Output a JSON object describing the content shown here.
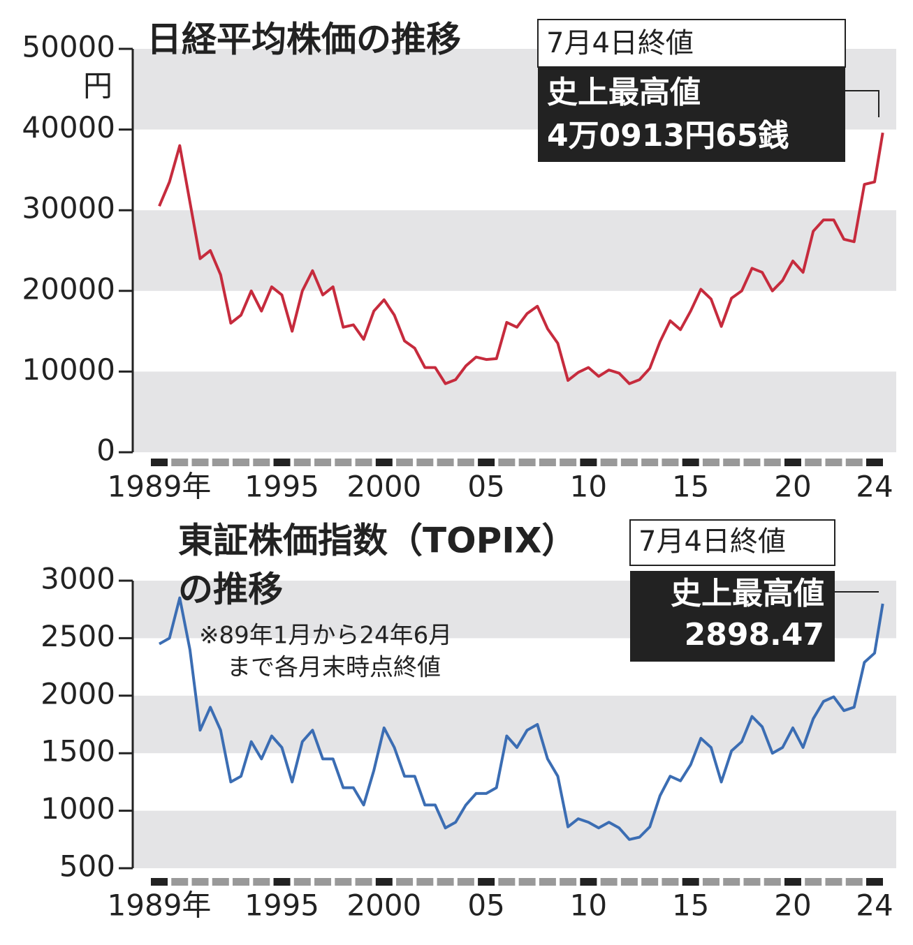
{
  "chart_data": [
    {
      "type": "line",
      "title": [
        "日経平均株価の推移"
      ],
      "unit": "円",
      "annotations": [
        "7月4日終値",
        "史上最高値",
        "4万0913円65銭"
      ],
      "xlim": [
        1989,
        2024.4
      ],
      "ylim": [
        0,
        50000
      ],
      "xticks": [
        {
          "value": 1989,
          "label": "1989年"
        },
        1995,
        2000,
        {
          "value": 2005,
          "label": "05"
        },
        {
          "value": 2010,
          "label": "10"
        },
        {
          "value": 2015,
          "label": "15"
        },
        {
          "value": 2020,
          "label": "20"
        },
        {
          "value": 2024,
          "label": "24"
        }
      ],
      "yticks": [
        0,
        10000,
        20000,
        30000,
        40000,
        50000
      ],
      "grid": "bands",
      "x": [
        1989,
        1989.5,
        1990,
        1990.5,
        1991,
        1991.5,
        1992,
        1992.5,
        1993,
        1993.5,
        1994,
        1994.5,
        1995,
        1995.5,
        1996,
        1996.5,
        1997,
        1997.5,
        1998,
        1998.5,
        1999,
        1999.5,
        2000,
        2000.5,
        2001,
        2001.5,
        2002,
        2002.5,
        2003,
        2003.5,
        2004,
        2004.5,
        2005,
        2005.5,
        2006,
        2006.5,
        2007,
        2007.5,
        2008,
        2008.5,
        2009,
        2009.5,
        2010,
        2010.5,
        2011,
        2011.5,
        2012,
        2012.5,
        2013,
        2013.5,
        2014,
        2014.5,
        2015,
        2015.5,
        2016,
        2016.5,
        2017,
        2017.5,
        2018,
        2018.5,
        2019,
        2019.5,
        2020,
        2020.5,
        2021,
        2021.5,
        2022,
        2022.5,
        2023,
        2023.5,
        2024,
        2024.4
      ],
      "series": [
        {
          "color": "#c62b3d",
          "values": [
            30500,
            33500,
            38000,
            31000,
            24000,
            25000,
            22000,
            16000,
            17000,
            20000,
            17500,
            20500,
            19500,
            15000,
            20000,
            22500,
            19500,
            20500,
            15500,
            15800,
            14000,
            17500,
            18900,
            17000,
            13800,
            12900,
            10500,
            10500,
            8500,
            9000,
            10700,
            11800,
            11500,
            11600,
            16100,
            15500,
            17200,
            18100,
            15300,
            13500,
            8900,
            9900,
            10500,
            9400,
            10200,
            9800,
            8500,
            9000,
            10400,
            13700,
            16300,
            15200,
            17500,
            20200,
            19000,
            15600,
            19100,
            20000,
            22800,
            22300,
            20000,
            21300,
            23700,
            22300,
            27400,
            28800,
            28800,
            26400,
            26100,
            33200,
            33500,
            39600
          ]
        }
      ]
    },
    {
      "type": "line",
      "title": [
        "東証株価指数（TOPIX）",
        "の推移"
      ],
      "notes": [
        "※89年1月から24年6月",
        "まで各月末時点終値"
      ],
      "annotations": [
        "7月4日終値",
        "史上最高値",
        "2898.47"
      ],
      "xlim": [
        1989,
        2024.4
      ],
      "ylim": [
        500,
        3000
      ],
      "xticks": [
        {
          "value": 1989,
          "label": "1989年"
        },
        1995,
        2000,
        {
          "value": 2005,
          "label": "05"
        },
        {
          "value": 2010,
          "label": "10"
        },
        {
          "value": 2015,
          "label": "15"
        },
        {
          "value": 2020,
          "label": "20"
        },
        {
          "value": 2024,
          "label": "24"
        }
      ],
      "yticks": [
        500,
        1000,
        1500,
        2000,
        2500,
        3000
      ],
      "grid": "bands",
      "x": [
        1989,
        1989.5,
        1990,
        1990.5,
        1991,
        1991.5,
        1992,
        1992.5,
        1993,
        1993.5,
        1994,
        1994.5,
        1995,
        1995.5,
        1996,
        1996.5,
        1997,
        1997.5,
        1998,
        1998.5,
        1999,
        1999.5,
        2000,
        2000.5,
        2001,
        2001.5,
        2002,
        2002.5,
        2003,
        2003.5,
        2004,
        2004.5,
        2005,
        2005.5,
        2006,
        2006.5,
        2007,
        2007.5,
        2008,
        2008.5,
        2009,
        2009.5,
        2010,
        2010.5,
        2011,
        2011.5,
        2012,
        2012.5,
        2013,
        2013.5,
        2014,
        2014.5,
        2015,
        2015.5,
        2016,
        2016.5,
        2017,
        2017.5,
        2018,
        2018.5,
        2019,
        2019.5,
        2020,
        2020.5,
        2021,
        2021.5,
        2022,
        2022.5,
        2023,
        2023.5,
        2024,
        2024.4
      ],
      "series": [
        {
          "color": "#3b6db3",
          "values": [
            2450,
            2500,
            2850,
            2400,
            1700,
            1900,
            1700,
            1250,
            1300,
            1600,
            1450,
            1650,
            1550,
            1250,
            1600,
            1700,
            1450,
            1450,
            1200,
            1200,
            1050,
            1350,
            1720,
            1550,
            1300,
            1300,
            1050,
            1050,
            850,
            900,
            1050,
            1150,
            1150,
            1200,
            1650,
            1550,
            1700,
            1750,
            1450,
            1300,
            860,
            930,
            900,
            850,
            900,
            850,
            750,
            770,
            860,
            1130,
            1300,
            1260,
            1400,
            1630,
            1550,
            1250,
            1520,
            1600,
            1820,
            1730,
            1500,
            1550,
            1720,
            1550,
            1800,
            1950,
            1990,
            1870,
            1900,
            2290,
            2370,
            2800
          ]
        }
      ]
    }
  ]
}
